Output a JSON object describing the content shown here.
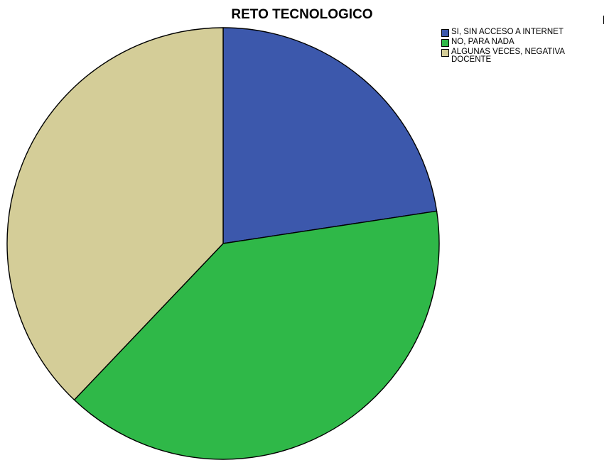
{
  "chart_data": {
    "type": "pie",
    "title": "RETO TECNOLOGICO",
    "categories": [
      "SI, SIN ACCESO A INTERNET",
      "NO, PARA NADA",
      "ALGUNAS VECES, NEGATIVA DOCENTE"
    ],
    "values": [
      22.6,
      39.5,
      37.9
    ],
    "colors": [
      "#3c58ac",
      "#2fb848",
      "#d4cd98"
    ],
    "start_angle_deg": 0,
    "direction": "clockwise",
    "legend_position": "top-right",
    "grid": false
  }
}
